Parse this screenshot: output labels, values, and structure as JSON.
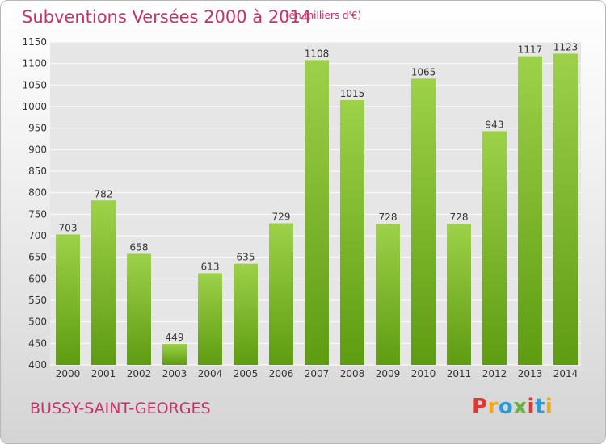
{
  "header": {
    "title": "Subventions Versées 2000 à 2014",
    "unit": "(en milliers d'€)"
  },
  "footer": {
    "city": "BUSSY-SAINT-GEORGES",
    "brand": "Proxiti",
    "brand_colors": [
      "#e8332e",
      "#f3a81b",
      "#2a9ad8",
      "#6cb33e",
      "#e8332e",
      "#2a9ad8",
      "#f3a81b"
    ]
  },
  "colors": {
    "accent": "#c8306a",
    "bar_top": "#9dd14a",
    "bar_bottom": "#5e9c12",
    "grid": "#ffffff",
    "plot_bg": "#e6e6e6"
  },
  "chart_data": {
    "type": "bar",
    "title": "Subventions Versées 2000 à 2014",
    "subtitle": "(en milliers d'€)",
    "categories": [
      "2000",
      "2001",
      "2002",
      "2003",
      "2004",
      "2005",
      "2006",
      "2007",
      "2008",
      "2009",
      "2010",
      "2011",
      "2012",
      "2013",
      "2014"
    ],
    "values": [
      703,
      782,
      658,
      449,
      613,
      635,
      729,
      1108,
      1015,
      728,
      1065,
      728,
      943,
      1117,
      1123
    ],
    "yticks": [
      400,
      450,
      500,
      550,
      600,
      650,
      700,
      750,
      800,
      850,
      900,
      950,
      1000,
      1050,
      1100,
      1150
    ],
    "ylim": [
      400,
      1150
    ],
    "grid": true,
    "legend": "none"
  }
}
